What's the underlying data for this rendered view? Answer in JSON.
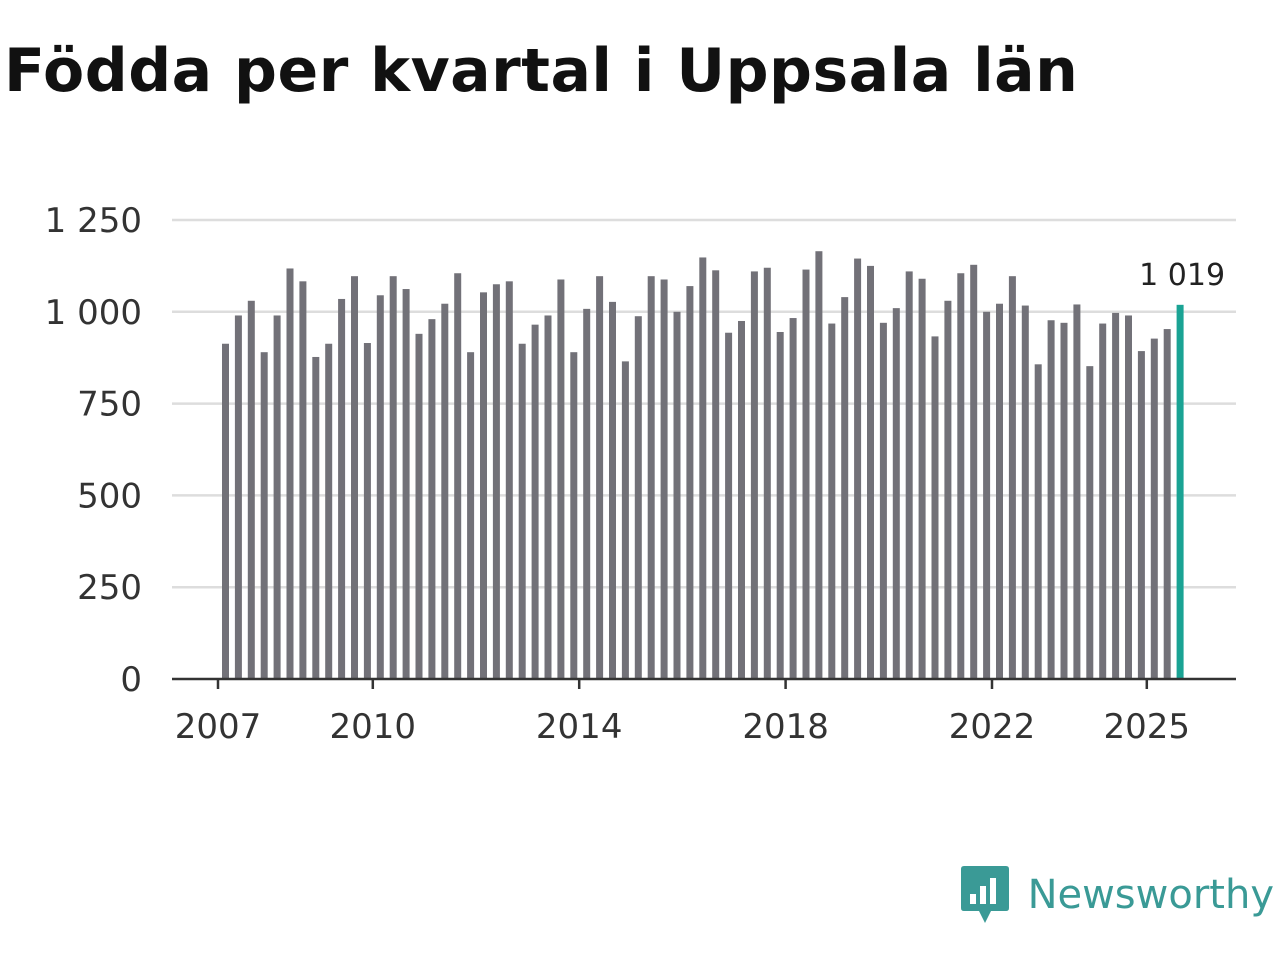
{
  "title": "Födda per kvartal i Uppsala län",
  "brand": {
    "name": "Newsworthy",
    "icon": "newsworthy-logo-icon",
    "color": "#3a9a96"
  },
  "colors": {
    "bar": "#727178",
    "highlight": "#1aa394",
    "grid": "#dddddd",
    "axis": "#333333"
  },
  "chart_data": {
    "type": "bar",
    "title": "Födda per kvartal i Uppsala län",
    "xlabel": "",
    "ylabel": "",
    "ylim": [
      0,
      1250
    ],
    "yticks": [
      0,
      250,
      500,
      750,
      1000,
      1250
    ],
    "ytick_labels": [
      "0",
      "250",
      "500",
      "750",
      "1 000",
      "1 250"
    ],
    "xtick_labels": [
      "2007",
      "2010",
      "2014",
      "2018",
      "2022",
      "2025"
    ],
    "x_start_year": 2007,
    "grid": true,
    "highlight_index": 74,
    "highlight_label": "1 019",
    "values": [
      913,
      990,
      1030,
      890,
      990,
      1118,
      1083,
      877,
      913,
      1035,
      1097,
      915,
      1045,
      1097,
      1062,
      940,
      980,
      1022,
      1105,
      890,
      1053,
      1075,
      1083,
      913,
      965,
      990,
      1088,
      890,
      1008,
      1097,
      1027,
      865,
      988,
      1097,
      1088,
      1000,
      1070,
      1148,
      1113,
      943,
      975,
      1110,
      1120,
      945,
      983,
      1115,
      1165,
      968,
      1040,
      1145,
      1125,
      970,
      1010,
      1110,
      1090,
      933,
      1030,
      1105,
      1128,
      1000,
      1022,
      1097,
      1017,
      857,
      977,
      970,
      1020,
      852,
      968,
      997,
      990,
      893,
      927,
      953,
      1019
    ]
  }
}
